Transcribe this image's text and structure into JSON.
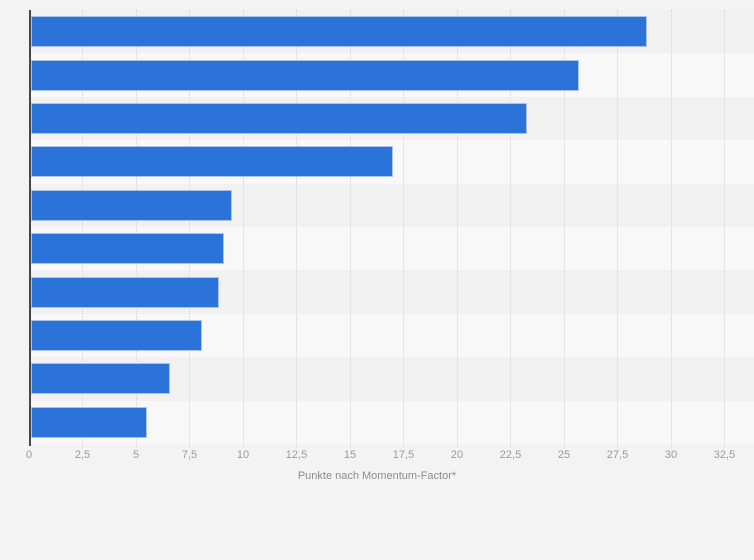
{
  "chart_data": {
    "type": "bar",
    "orientation": "horizontal",
    "title": "",
    "xlabel": "Punkte nach Momentum-Factor*",
    "ylabel": "",
    "values": [
      28.8,
      25.6,
      23.2,
      16.9,
      9.4,
      9.0,
      8.8,
      8.0,
      6.5,
      5.4
    ],
    "category_labels_visible": false,
    "xlim": [
      0,
      32.5
    ],
    "x_ticks": [
      0,
      2.5,
      5,
      7.5,
      10,
      12.5,
      15,
      17.5,
      20,
      22.5,
      25,
      27.5,
      30,
      32.5
    ],
    "x_tick_labels": [
      "0",
      "2,5",
      "5",
      "7,5",
      "10",
      "12,5",
      "15",
      "17,5",
      "20",
      "22,5",
      "25",
      "27,5",
      "30",
      "32,5"
    ],
    "grid": "vertical-dotted",
    "row_bands": "alternating",
    "legend": false
  },
  "colors": {
    "background": "#f3f3f3",
    "band_dark": "#f1f1f1",
    "band_light": "#f8f8f8",
    "bar_fill": "#2b73d8",
    "bar_border": "#a9c3ea",
    "gridline": "#d4d4d4",
    "axis_line": "#42474d",
    "tick_label": "#9a9a9a",
    "axis_title": "#8d8d8d"
  }
}
